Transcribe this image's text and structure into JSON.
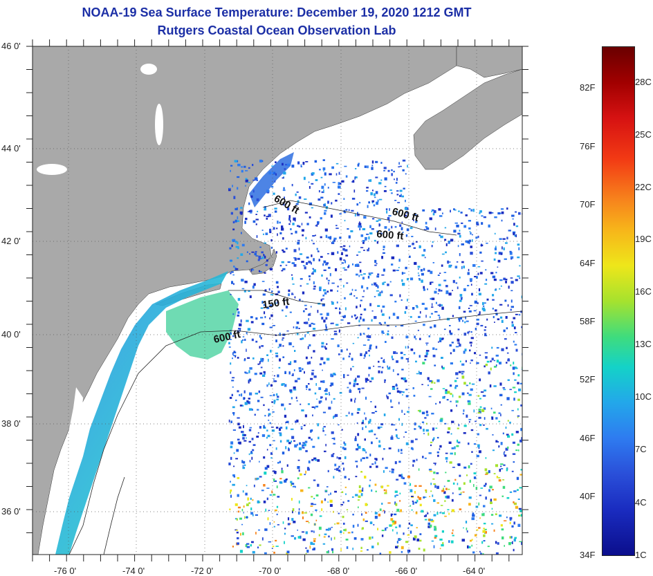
{
  "title": {
    "line1": "NOAA-19 Sea Surface Temperature:  December 19, 2020 1212 GMT",
    "line2": "Rutgers Coastal Ocean Observation Lab"
  },
  "axes": {
    "lat_labels": [
      "46 0'",
      "44 0'",
      "42 0'",
      "40 0'",
      "38 0'",
      "36 0'"
    ],
    "lon_labels": [
      "-76 0'",
      "-74 0'",
      "-72 0'",
      "-70 0'",
      "-68 0'",
      "-66 0'",
      "-64 0'"
    ]
  },
  "isobaths": [
    "600 ft",
    "600 ft",
    "600 ft",
    "150 ft",
    "600 ft"
  ],
  "colorbar": {
    "fahrenheit": [
      "82F",
      "76F",
      "70F",
      "64F",
      "58F",
      "52F",
      "46F",
      "40F",
      "34F"
    ],
    "celsius": [
      "28C",
      "25C",
      "22C",
      "19C",
      "16C",
      "13C",
      "10C",
      "7C",
      "4C",
      "1C"
    ]
  },
  "colors": {
    "land": "#a9a9a9",
    "ocean_nodata": "#ffffff",
    "title": "#1c2fa6"
  }
}
